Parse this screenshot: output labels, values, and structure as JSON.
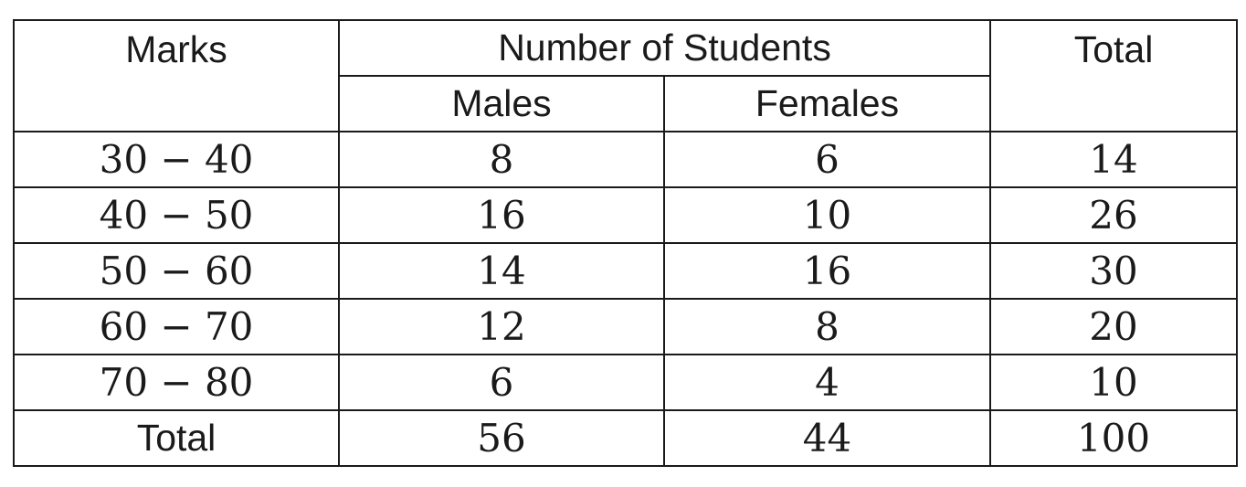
{
  "table": {
    "header": {
      "marks": "Marks",
      "number_of_students": "Number of Students",
      "males": "Males",
      "females": "Females",
      "total": "Total"
    },
    "rows": [
      {
        "marks": "30 − 40",
        "males": "8",
        "females": "6",
        "total": "14"
      },
      {
        "marks": "40 − 50",
        "males": "16",
        "females": "10",
        "total": "26"
      },
      {
        "marks": "50 − 60",
        "males": "14",
        "females": "16",
        "total": "30"
      },
      {
        "marks": "60 − 70",
        "males": "12",
        "females": "8",
        "total": "20"
      },
      {
        "marks": "70 − 80",
        "males": "6",
        "females": "4",
        "total": "10"
      }
    ],
    "footer": {
      "label": "Total",
      "males": "56",
      "females": "44",
      "total": "100"
    }
  }
}
